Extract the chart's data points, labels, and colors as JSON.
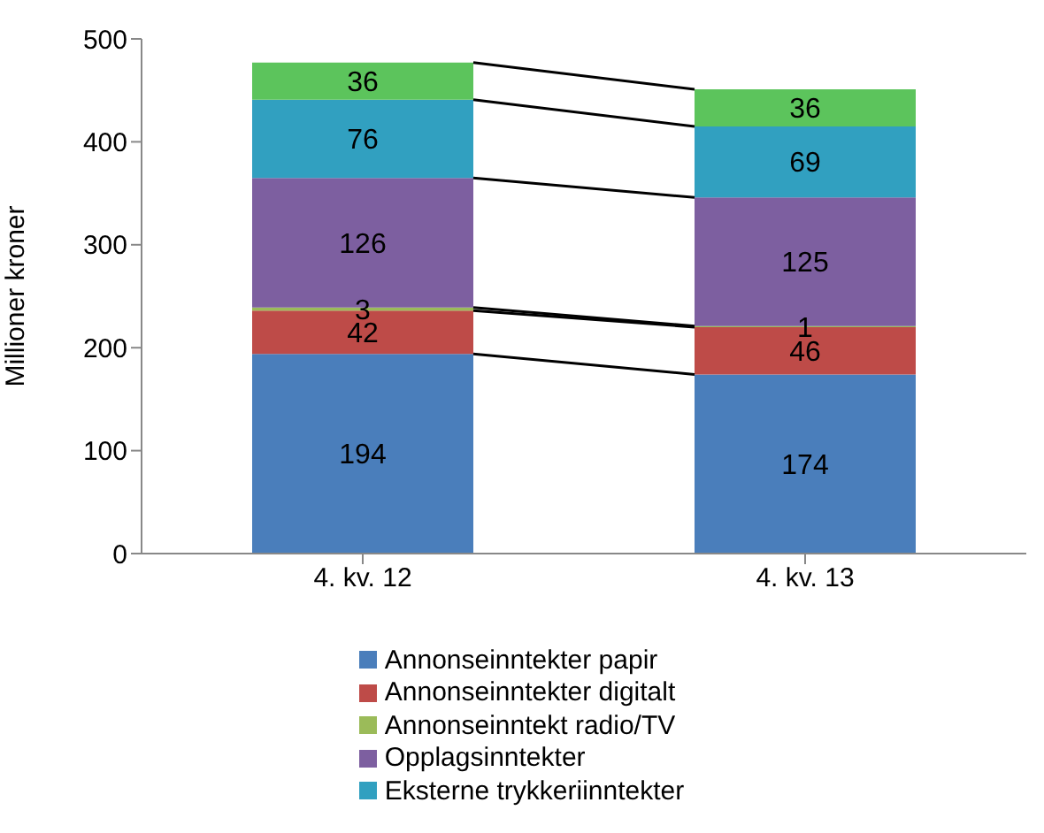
{
  "chart_data": {
    "type": "bar",
    "stacked": true,
    "ylabel": "Millioner kroner",
    "categories": [
      "4. kv. 12",
      "4. kv. 13"
    ],
    "series": [
      {
        "name": "Annonseinntekter papir",
        "color": "#4a7ebb",
        "values": [
          194,
          174
        ]
      },
      {
        "name": "Annonseinntekter digitalt",
        "color": "#be4b48",
        "values": [
          42,
          46
        ]
      },
      {
        "name": "Annonseinntekt radio/TV",
        "color": "#9bbb59",
        "values": [
          3,
          1
        ]
      },
      {
        "name": "Opplagsinntekter",
        "color": "#7d5fa0",
        "values": [
          126,
          125
        ]
      },
      {
        "name": "Eksterne trykkeriinntekter",
        "color": "#31a0c0",
        "values": [
          76,
          69
        ]
      },
      {
        "color": "#5cc45c",
        "values": [
          36,
          36
        ]
      }
    ],
    "ylim": [
      0,
      500
    ],
    "yticks": [
      0,
      100,
      200,
      300,
      400,
      500
    ],
    "grid": false,
    "legend": "bottom",
    "data_labels": true
  }
}
